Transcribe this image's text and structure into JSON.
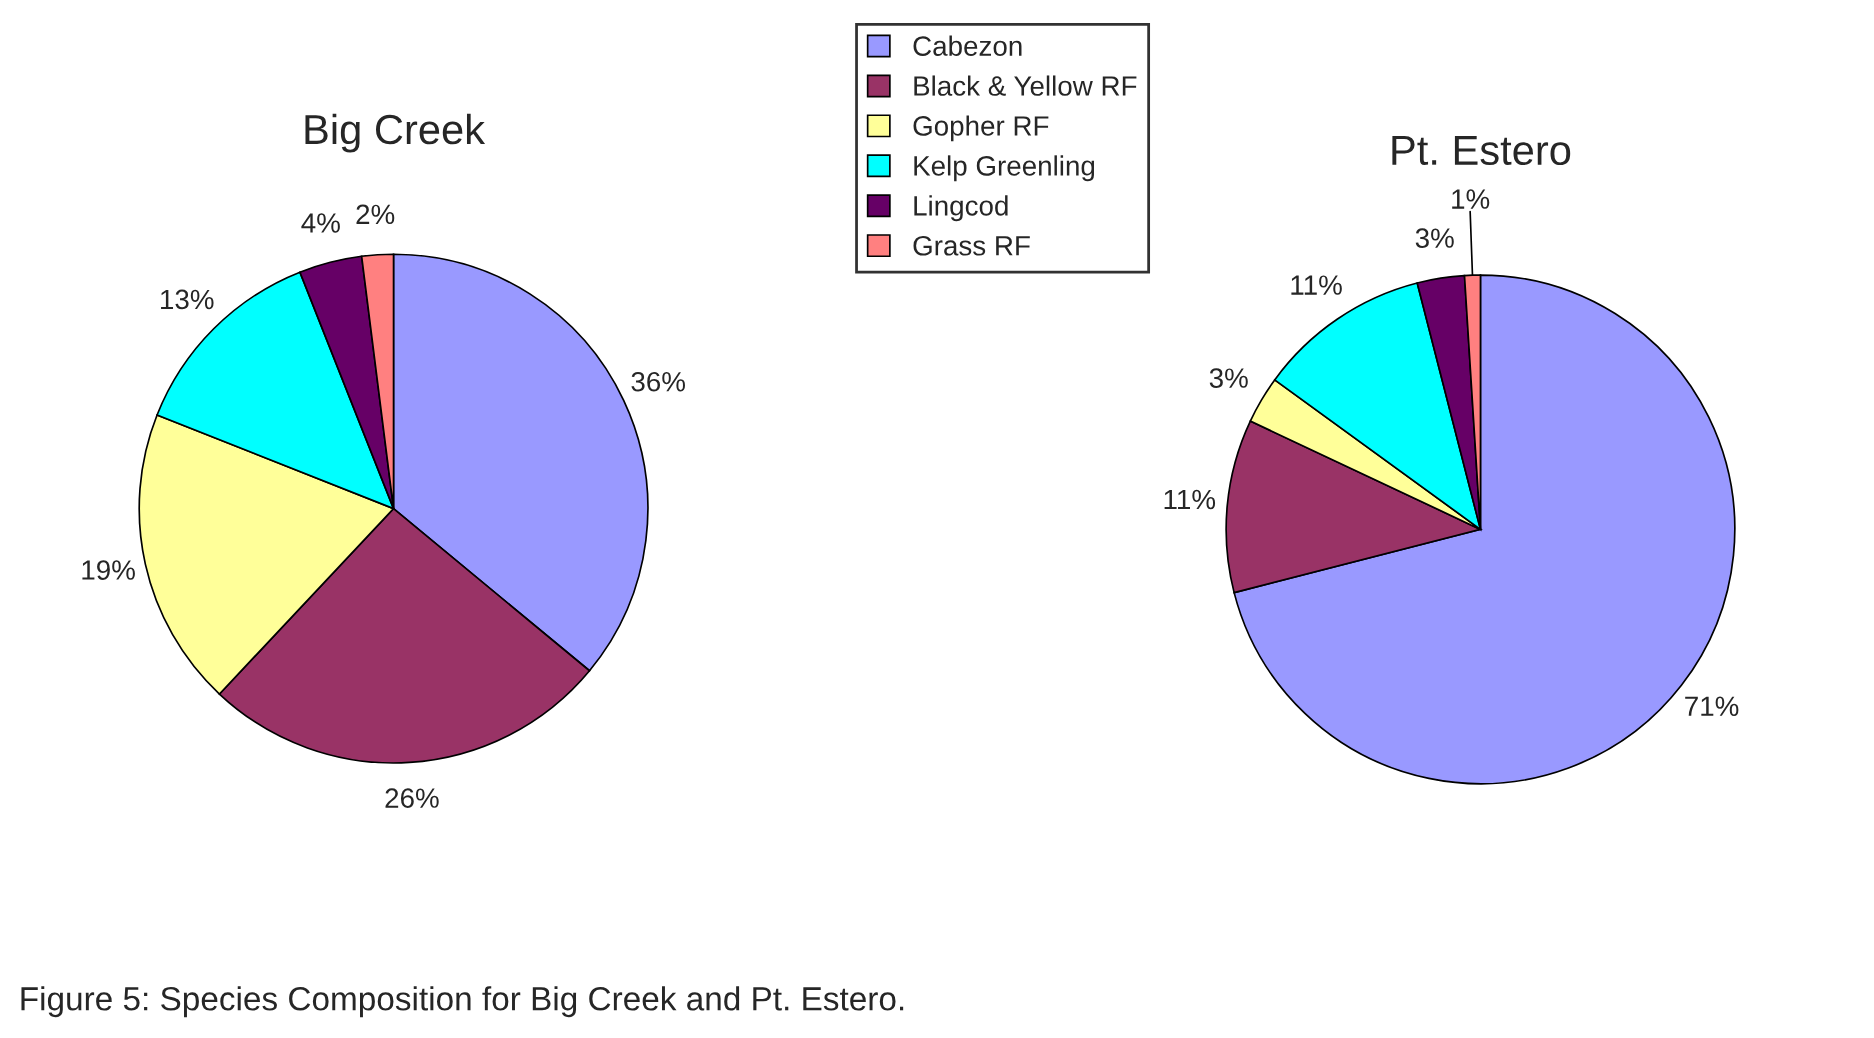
{
  "chart_data": [
    {
      "type": "pie",
      "title": "Big Creek",
      "categories": [
        "Cabezon",
        "Black & Yellow RF",
        "Gopher RF",
        "Kelp Greenling",
        "Lingcod",
        "Grass RF"
      ],
      "values": [
        36,
        26,
        19,
        13,
        4,
        2
      ],
      "value_labels": [
        "36%",
        "26%",
        "19%",
        "13%",
        "4%",
        "2%"
      ],
      "colors": [
        "#9999ff",
        "#993366",
        "#ffff99",
        "#00ffff",
        "#660066",
        "#ff8080"
      ],
      "legend": "top right",
      "annotations": [
        "Figure 5: Species Composition for Big Creek and Pt. Estero."
      ]
    },
    {
      "type": "pie",
      "title": "Pt. Estero",
      "categories": [
        null,
        null,
        null,
        null,
        null,
        null
      ],
      "values": [
        71,
        11,
        3,
        11,
        3,
        1
      ],
      "value_labels": [
        "71%",
        "11%",
        "3%",
        "11%",
        "3%",
        "1%"
      ],
      "colors": [
        "#9999ff",
        "#993366",
        "#ffff99",
        "#00ffff",
        "#660066",
        "#ff8080"
      ]
    }
  ]
}
